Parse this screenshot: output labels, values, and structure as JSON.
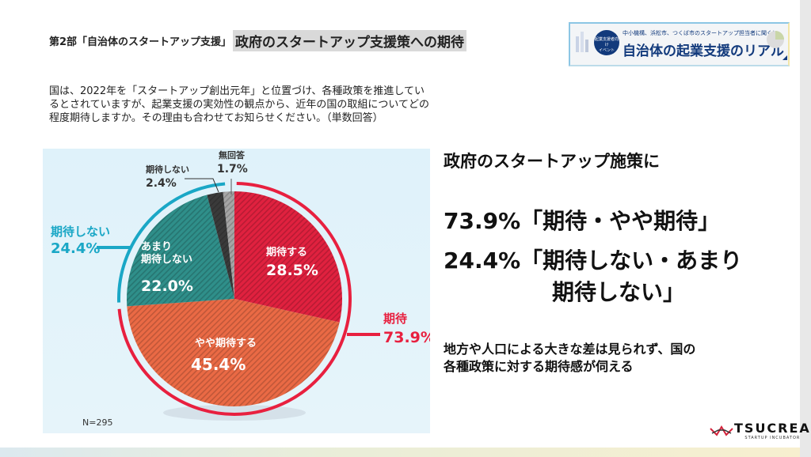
{
  "header": {
    "section": "第2部「自治体のスタートアップ支援」",
    "title": "政府のスタートアップ支援策への期待"
  },
  "question": "国は、2022年を「スタートアップ創出元年」と位置づけ、各種政策を推進しているとされていますが、起業支援の実効性の観点から、近年の国の取組についてどの程度期待しますか。その理由も合わせてお知らせください。（単数回答）",
  "banner": {
    "badge_line1": "起業支援者向け",
    "badge_line2": "イベント",
    "top": "中小機構、浜松市、つくば市のスタートアップ担当者に聞く！",
    "main": "自治体の起業支援のリアル"
  },
  "chart_data": {
    "type": "pie",
    "start": "12 o'clock",
    "direction": "clockwise",
    "slices": [
      {
        "label": "期待する",
        "value": 28.5,
        "display": "28.5%",
        "color": "#e0213f"
      },
      {
        "label": "やや期待する",
        "value": 45.4,
        "display": "45.4%",
        "color": "#ea6a45"
      },
      {
        "label": "あまり\n期待しない",
        "value": 22.0,
        "display": "22.0%",
        "color": "#2f8f8a"
      },
      {
        "label": "期待しない",
        "value": 2.4,
        "display": "2.4%",
        "color": "#3a3a3a"
      },
      {
        "label": "無回答",
        "value": 1.7,
        "display": "1.7%",
        "color": "#a6a6a6"
      }
    ],
    "groups": [
      {
        "label": "期待",
        "value": 73.9,
        "display": "73.9%",
        "color": "#e8203f"
      },
      {
        "label": "期待しない",
        "value": 24.4,
        "display": "24.4%",
        "color": "#1aa7c6"
      }
    ],
    "note": "N=295"
  },
  "summary": {
    "line1": "政府のスタートアップ施策に",
    "line2": "73.9%「期待・やや期待」",
    "line3": "24.4%「期待しない・あまり",
    "line4": "期待しない」",
    "line5": "地方や人口による大きな差は見られず、国の",
    "line6": "各種政策に対する期待感が伺える"
  },
  "logo": {
    "name": "TSUCREA",
    "sub": "STARTUP INCUBATOR"
  }
}
